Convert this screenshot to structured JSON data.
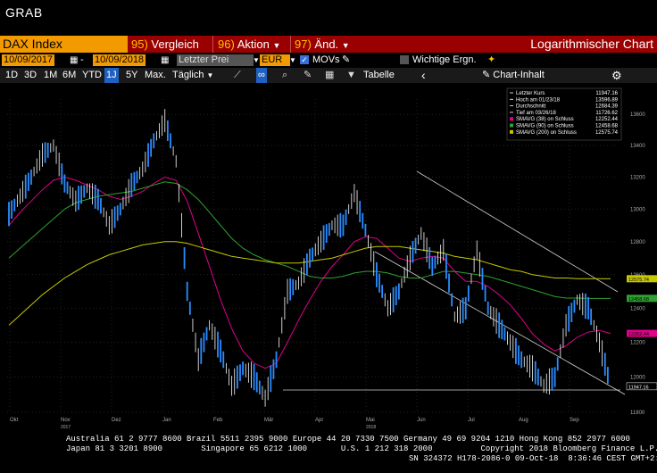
{
  "window": {
    "title": "GRAB"
  },
  "toolbar1": {
    "security": "DAX Index",
    "menus": [
      {
        "num": "95)",
        "label": "Vergleich"
      },
      {
        "num": "96)",
        "label": "Aktion"
      },
      {
        "num": "97)",
        "label": "Änd."
      }
    ],
    "chart_title": "Logarithmischer Chart"
  },
  "toolbar2": {
    "start_date": "10/09/2017",
    "end_date": "10/09/2018",
    "price_field": "Letzter Prei",
    "currency": "EUR",
    "movs_label": "MOVs",
    "events_label": "Wichtige Ergn."
  },
  "toolbar3": {
    "timeframes": [
      "1D",
      "3D",
      "1M",
      "6M",
      "YTD",
      "1J",
      "5Y",
      "Max."
    ],
    "selected_timeframe": "1J",
    "period": "Täglich",
    "table_label": "Tabelle",
    "chart_content_label": "Chart-Inhalt"
  },
  "chart_data": {
    "type": "line",
    "ylim": [
      11800,
      13700
    ],
    "log_scale": true,
    "y_ticks": [
      11800,
      12000,
      12200,
      12400,
      12600,
      12800,
      13000,
      13200,
      13400,
      13600
    ],
    "x_ticks": [
      "Okt",
      "Nov",
      "Dez",
      "Jan",
      "Feb",
      "Mär",
      "Apr",
      "Mai",
      "Jun",
      "Jul",
      "Aug",
      "Sep"
    ],
    "year_labels": [
      "2017",
      "2018"
    ],
    "series": [
      {
        "name": "Letzter Kurs",
        "values": [
          12970,
          13080,
          13200,
          13340,
          13400,
          13160,
          13050,
          13130,
          13060,
          12900,
          13000,
          13150,
          13250,
          13430,
          13560,
          13300,
          12500,
          12100,
          12300,
          12150,
          11950,
          12050,
          12000,
          11880,
          12100,
          12500,
          12550,
          12700,
          12800,
          12900,
          12900,
          13100,
          12870,
          12600,
          12400,
          12500,
          12700,
          12850,
          12650,
          12750,
          12350,
          12400,
          12750,
          12400,
          12300,
          12200,
          12100,
          12050,
          11950,
          12000,
          12300,
          12450,
          12400,
          12200,
          11947
        ]
      },
      {
        "name": "SMAVG (38) on Schluss",
        "values": [
          12900,
          12980,
          13050,
          13120,
          13180,
          13200,
          13180,
          13150,
          13120,
          13080,
          13060,
          13080,
          13110,
          13160,
          13200,
          13180,
          13050,
          12850,
          12650,
          12450,
          12280,
          12150,
          12080,
          12050,
          12080,
          12200,
          12330,
          12450,
          12560,
          12650,
          12720,
          12800,
          12830,
          12820,
          12760,
          12700,
          12680,
          12700,
          12710,
          12700,
          12620,
          12560,
          12560,
          12530,
          12480,
          12420,
          12340,
          12250,
          12190,
          12150,
          12180,
          12230,
          12260,
          12270,
          12252
        ]
      },
      {
        "name": "SMAVG (90) on Schluss",
        "values": [
          12700,
          12760,
          12820,
          12880,
          12940,
          13000,
          13040,
          13060,
          13080,
          13090,
          13100,
          13110,
          13130,
          13150,
          13170,
          13160,
          13120,
          13060,
          12980,
          12900,
          12820,
          12760,
          12720,
          12690,
          12670,
          12650,
          12620,
          12590,
          12580,
          12580,
          12590,
          12610,
          12620,
          12620,
          12610,
          12590,
          12580,
          12580,
          12600,
          12620,
          12620,
          12610,
          12600,
          12590,
          12570,
          12550,
          12530,
          12510,
          12490,
          12470,
          12460,
          12460,
          12458,
          12458,
          12458
        ]
      },
      {
        "name": "SMAVG (200) on Schluss",
        "values": [
          12300,
          12360,
          12420,
          12480,
          12530,
          12580,
          12620,
          12660,
          12690,
          12720,
          12740,
          12760,
          12780,
          12790,
          12800,
          12800,
          12790,
          12770,
          12750,
          12730,
          12710,
          12700,
          12690,
          12680,
          12670,
          12670,
          12670,
          12680,
          12690,
          12700,
          12720,
          12740,
          12760,
          12770,
          12770,
          12770,
          12760,
          12750,
          12740,
          12730,
          12710,
          12700,
          12690,
          12670,
          12650,
          12630,
          12620,
          12600,
          12590,
          12580,
          12580,
          12576,
          12576,
          12576,
          12575
        ]
      }
    ],
    "legend": [
      {
        "label": "Letzter Kurs",
        "value": "11947.16",
        "color": "#ffffff"
      },
      {
        "label": "Hoch am 01/23/18",
        "value": "13596.89",
        "color": "#ffffff"
      },
      {
        "label": "Durchschnitt",
        "value": "12684.39",
        "color": "#ffffff"
      },
      {
        "label": "Tief am 03/26/18",
        "value": "11726.62",
        "color": "#ffffff"
      },
      {
        "label": "SMAVG (38)  on Schluss",
        "value": "12252.44",
        "color": "#e0008a"
      },
      {
        "label": "SMAVG (90)  on Schluss",
        "value": "12458.68",
        "color": "#30a030"
      },
      {
        "label": "SMAVG (200)  on Schluss",
        "value": "12575.74",
        "color": "#c8c800"
      }
    ],
    "last_price_tags": [
      {
        "value": "12575.74",
        "color": "#c8c800"
      },
      {
        "value": "12458.68",
        "color": "#30a030"
      },
      {
        "value": "12252.44",
        "color": "#e0008a"
      },
      {
        "value": "11947.16",
        "color": "#ffffff"
      }
    ]
  },
  "footer": {
    "line1": "Australia 61 2 9777 8600 Brazil 5511 2395 9000 Europe 44 20 7330 7500 Germany 49 69 9204 1210 Hong Kong 852 2977 6000",
    "line2": "Japan 81 3 3201 8900        Singapore 65 6212 1000       U.S. 1 212 318 2000          Copyright 2018 Bloomberg Finance L.P.",
    "line3": "SN 324372 H178-2086-0 09-Oct-18  8:36:46 CEST GMT+2:00"
  }
}
